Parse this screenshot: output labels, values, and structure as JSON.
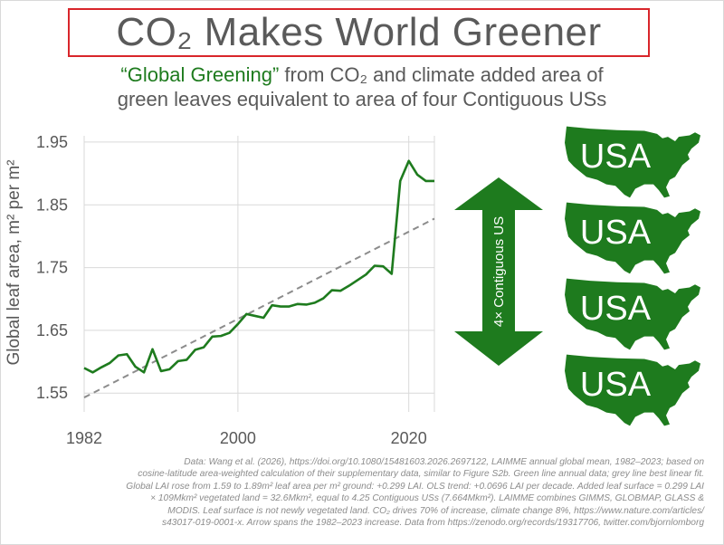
{
  "title": "CO₂ Makes World Greener",
  "subtitle": {
    "highlight": "“Global Greening”",
    "line1_rest": " from CO₂ and climate added area of",
    "line2": "green leaves equivalent to area of four Contiguous USs"
  },
  "arrow_label": "4× Contiguous US",
  "map_label": "USA",
  "map_count": 4,
  "colors": {
    "series": "#1e7b1e",
    "trend": "#8c8c8c",
    "accent_green": "#1e7b1e",
    "title_border": "#d9262b"
  },
  "footnote_lines": [
    "Data: Wang et al. (2026), https://doi.org/10.1080/15481603.2026.2697122, LAIMME annual global mean, 1982–2023; based on",
    "cosine-latitude area-weighted calculation of their supplementary data, similar to Figure S2b. Green line annual data; grey line best linear fit.",
    "Global LAI rose from 1.59 to 1.89m² leaf area per m² ground: +0.299 LAI. OLS trend: +0.0696 LAI per decade. Added leaf surface = 0.299 LAI",
    "× 109Mkm² vegetated land = 32.6Mkm², equal to 4.25 Contiguous USs (7.664Mkm²). LAIMME combines GIMMS, GLOBMAP, GLASS &",
    "MODIS. Leaf surface is not newly vegetated land. CO₂ drives 70% of increase, climate change 8%, https://www.nature.com/articles/",
    "s43017-019-0001-x. Arrow spans the 1982–2023 increase. Data from https://zenodo.org/records/19317706, twitter.com/bjornlomborg"
  ],
  "chart_data": {
    "type": "line",
    "title": "CO₂ Makes World Greener",
    "xlabel": "",
    "ylabel": "Global leaf area, m² per m²",
    "xlim": [
      1982,
      2023
    ],
    "ylim": [
      1.52,
      1.96
    ],
    "x_ticks": [
      1982,
      2000,
      2020
    ],
    "y_ticks": [
      1.55,
      1.65,
      1.75,
      1.85,
      1.95
    ],
    "y_tick_labels": [
      "1.55",
      "1.65",
      "1.75",
      "1.85",
      "1.95"
    ],
    "grid": true,
    "legend": "none",
    "series": [
      {
        "x": [
          1982,
          1983,
          1984,
          1985,
          1986,
          1987,
          1988,
          1989,
          1990,
          1991,
          1992,
          1993,
          1994,
          1995,
          1996,
          1997,
          1998,
          1999,
          2000,
          2001,
          2002,
          2003,
          2004,
          2005,
          2006,
          2007,
          2008,
          2009,
          2010,
          2011,
          2012,
          2013,
          2014,
          2015,
          2016,
          2017,
          2018,
          2019,
          2020,
          2021,
          2022,
          2023
        ],
        "values": [
          1.59,
          1.583,
          1.591,
          1.598,
          1.61,
          1.612,
          1.592,
          1.583,
          1.62,
          1.585,
          1.588,
          1.601,
          1.603,
          1.619,
          1.623,
          1.64,
          1.641,
          1.646,
          1.66,
          1.676,
          1.673,
          1.67,
          1.69,
          1.688,
          1.688,
          1.692,
          1.691,
          1.694,
          1.701,
          1.714,
          1.713,
          1.721,
          1.73,
          1.739,
          1.753,
          1.752,
          1.74,
          1.888,
          1.92,
          1.898,
          1.888,
          1.888
        ]
      },
      {
        "style": "dashed",
        "x": [
          1982,
          2023
        ],
        "values": [
          1.543,
          1.828
        ]
      }
    ]
  }
}
